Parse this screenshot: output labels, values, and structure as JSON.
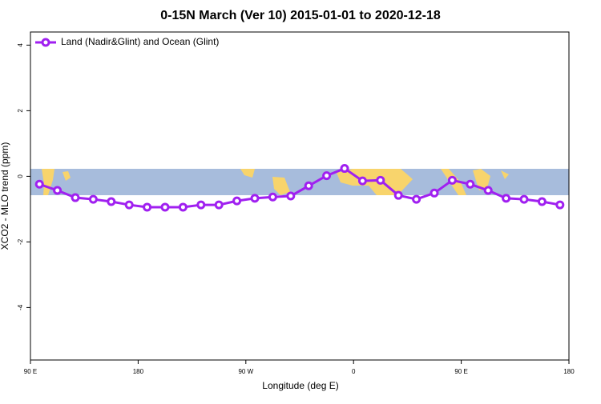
{
  "chart_data": {
    "type": "line",
    "title": "0-15N March (Ver 10)   2015-01-01 to 2020-12-18",
    "x_label": "Longitude (deg E)",
    "y_label": "XCO2 - MLO trend (ppm)",
    "x": [
      97.5,
      112.5,
      127.5,
      142.5,
      157.5,
      172.5,
      187.5,
      202.5,
      217.5,
      232.5,
      247.5,
      262.5,
      277.5,
      292.5,
      307.5,
      322.5,
      337.5,
      352.5,
      367.5,
      382.5,
      397.5,
      412.5,
      427.5,
      442.5,
      457.5,
      472.5,
      487.5,
      502.5,
      517.5,
      532.5
    ],
    "series": [
      {
        "name": "Land (Nadir&Glint) and Ocean (Glint)",
        "color": "#a020f0",
        "values": [
          -0.24,
          -0.43,
          -0.65,
          -0.7,
          -0.77,
          -0.87,
          -0.94,
          -0.94,
          -0.94,
          -0.87,
          -0.87,
          -0.75,
          -0.67,
          -0.63,
          -0.6,
          -0.29,
          0.02,
          0.24,
          -0.14,
          -0.12,
          -0.58,
          -0.7,
          -0.51,
          -0.12,
          -0.24,
          -0.43,
          -0.67,
          -0.7,
          -0.77,
          -0.87
        ]
      }
    ],
    "xlim": [
      90,
      540
    ],
    "xticks": [
      {
        "value": 90,
        "label": "90 E"
      },
      {
        "value": 180,
        "label": "180"
      },
      {
        "value": 270,
        "label": "90 W"
      },
      {
        "value": 360,
        "label": "0"
      },
      {
        "value": 450,
        "label": "90 E"
      },
      {
        "value": 540,
        "label": "180"
      }
    ],
    "ylim": [
      -5.6,
      4.4
    ],
    "yticks": [
      -4,
      -2,
      0,
      2,
      4
    ],
    "legend": "top-left"
  }
}
